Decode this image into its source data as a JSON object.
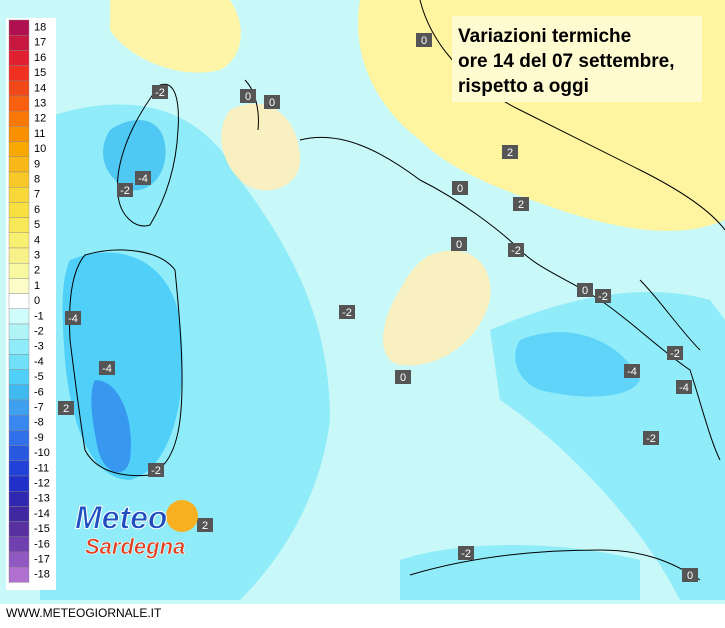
{
  "title": [
    "Variazioni termiche",
    "ore 14 del 07 settembre,",
    "rispetto a oggi"
  ],
  "legend": [
    {
      "value": 18,
      "color": "#b01050"
    },
    {
      "value": 17,
      "color": "#c81840"
    },
    {
      "value": 16,
      "color": "#e02030"
    },
    {
      "value": 15,
      "color": "#f03020"
    },
    {
      "value": 14,
      "color": "#f04818"
    },
    {
      "value": 13,
      "color": "#f86010"
    },
    {
      "value": 12,
      "color": "#f87808"
    },
    {
      "value": 11,
      "color": "#f89000"
    },
    {
      "value": 10,
      "color": "#f8a800"
    },
    {
      "value": 9,
      "color": "#f8b818"
    },
    {
      "value": 8,
      "color": "#f8c828"
    },
    {
      "value": 7,
      "color": "#f8d838"
    },
    {
      "value": 6,
      "color": "#f8e040"
    },
    {
      "value": 5,
      "color": "#f8e858"
    },
    {
      "value": 4,
      "color": "#f8f070"
    },
    {
      "value": 3,
      "color": "#f8f088"
    },
    {
      "value": 2,
      "color": "#f8f8a0"
    },
    {
      "value": 1,
      "color": "#fcfcc8"
    },
    {
      "value": 0,
      "color": "#ffffff"
    },
    {
      "value": -1,
      "color": "#d0fcfc"
    },
    {
      "value": -2,
      "color": "#b0f4f8"
    },
    {
      "value": -3,
      "color": "#90ecf8"
    },
    {
      "value": -4,
      "color": "#70e0f8"
    },
    {
      "value": -5,
      "color": "#50d0f8"
    },
    {
      "value": -6,
      "color": "#40b8f0"
    },
    {
      "value": -7,
      "color": "#40a0f0"
    },
    {
      "value": -8,
      "color": "#3888f0"
    },
    {
      "value": -9,
      "color": "#3070e8"
    },
    {
      "value": -10,
      "color": "#2858e0"
    },
    {
      "value": -11,
      "color": "#2040d8"
    },
    {
      "value": -12,
      "color": "#2030c8"
    },
    {
      "value": -13,
      "color": "#3028b0"
    },
    {
      "value": -14,
      "color": "#4028a0"
    },
    {
      "value": -15,
      "color": "#5830a0"
    },
    {
      "value": -16,
      "color": "#7040b0"
    },
    {
      "value": -17,
      "color": "#9058c0"
    },
    {
      "value": -18,
      "color": "#b070d0"
    }
  ],
  "contour_labels": [
    -2,
    0,
    0,
    0,
    -4,
    -2,
    2,
    0,
    2,
    0,
    -2,
    -2,
    0,
    -2,
    -4,
    -4,
    0,
    2,
    -2,
    -4,
    -4,
    -2,
    -2,
    2,
    -2,
    0
  ],
  "logo": [
    "Meteo",
    "Sardegna"
  ],
  "footer": "WWW.METEOGIORNALE.IT"
}
